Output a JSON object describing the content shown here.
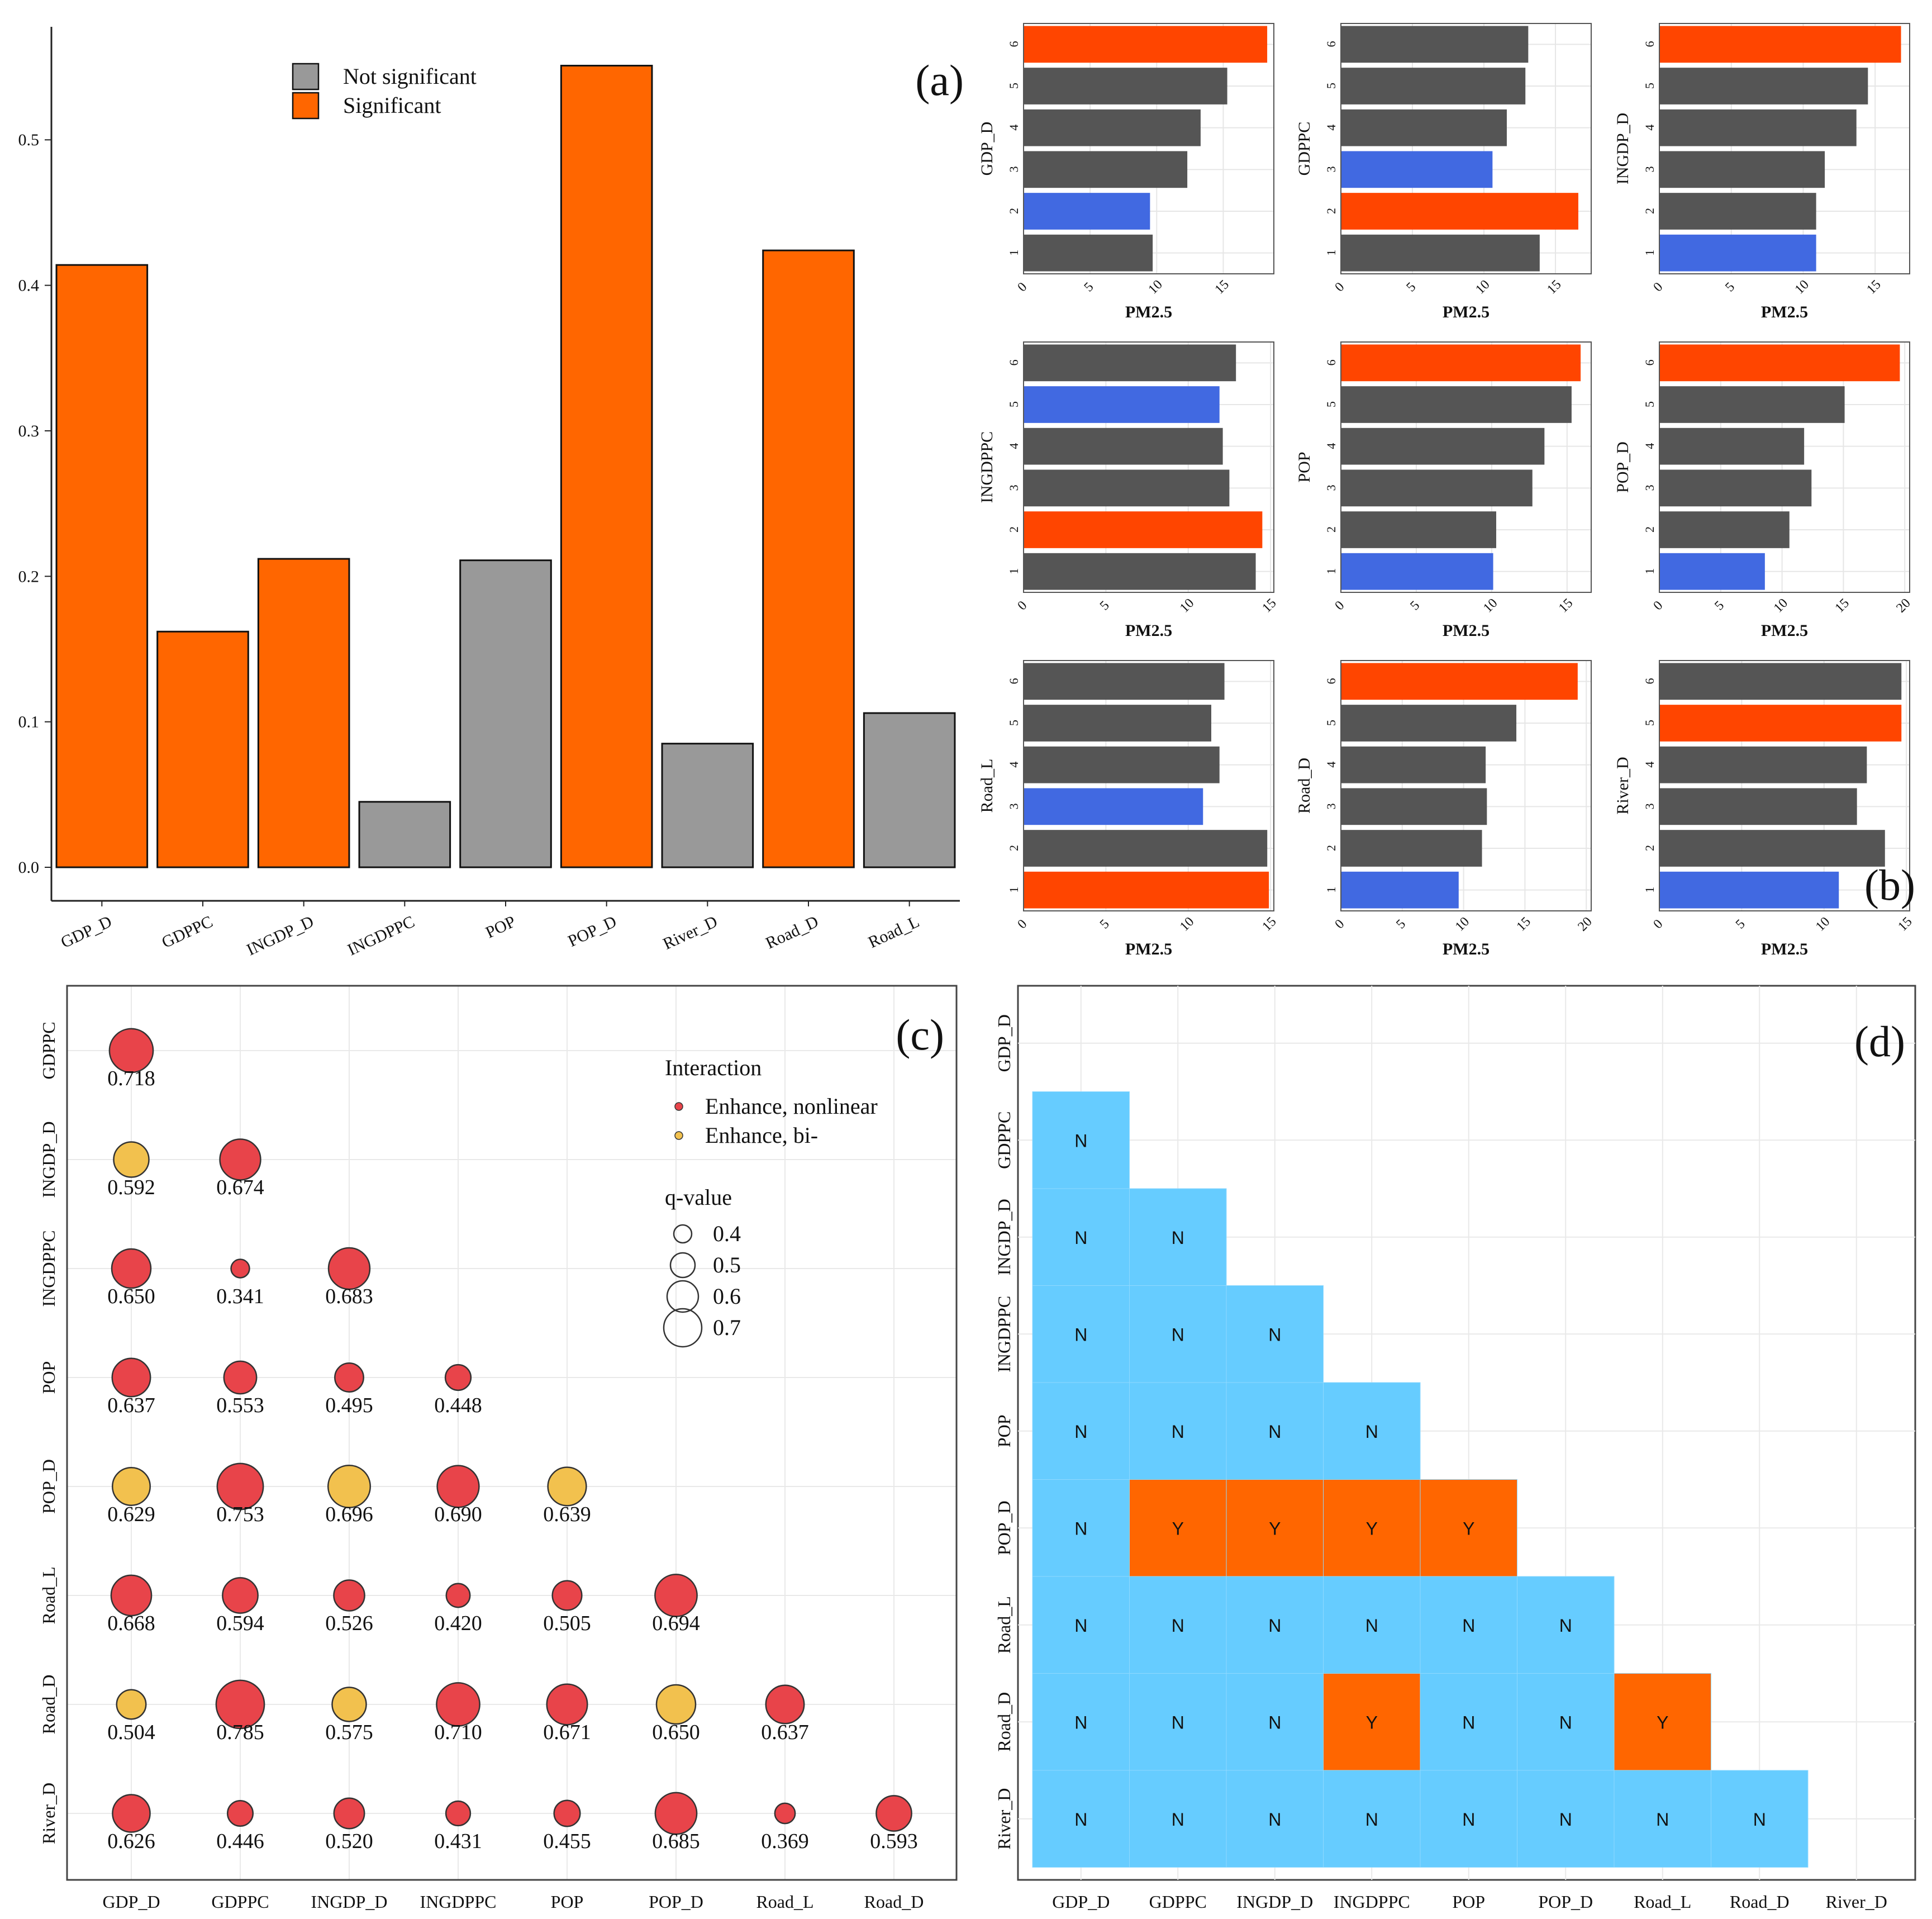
{
  "chart_data": [
    {
      "panel": "(a)",
      "type": "bar",
      "title": "",
      "xlabel": "",
      "ylabel": "",
      "categories": [
        "GDP_D",
        "GDPPC",
        "INGDP_D",
        "INGDPPC",
        "POP",
        "POP_D",
        "River_D",
        "Road_D",
        "Road_L"
      ],
      "values": [
        0.414,
        0.162,
        0.212,
        0.045,
        0.211,
        0.551,
        0.085,
        0.424,
        0.106
      ],
      "significance": [
        "Significant",
        "Significant",
        "Significant",
        "Not significant",
        "Not significant",
        "Significant",
        "Not significant",
        "Significant",
        "Not significant"
      ],
      "ylim": [
        0,
        0.57
      ],
      "yticks": [
        0.0,
        0.1,
        0.2,
        0.3,
        0.4,
        0.5
      ],
      "ytick_labels": [
        "0.0",
        "0.1",
        "0.2",
        "0.3",
        "0.4",
        "0.5"
      ],
      "legend": [
        {
          "label": "Not significant",
          "color": "#999999"
        },
        {
          "label": "Significant",
          "color": "#FF6600"
        }
      ],
      "legend_position": "top-center"
    },
    {
      "panel": "(b)",
      "type": "bar",
      "orientation": "horizontal",
      "xlabel": "PM2.5",
      "categories": [
        "1",
        "2",
        "3",
        "4",
        "5",
        "6"
      ],
      "colors": {
        "default": "#555555",
        "max": "#FF4500",
        "min": "#4169E1"
      },
      "subplots": [
        {
          "ylabel": "GDP_D",
          "values": [
            9.7,
            9.5,
            12.3,
            13.3,
            15.3,
            18.3
          ],
          "xlim": [
            0,
            18.8
          ],
          "xticks": [
            0,
            5,
            10,
            15
          ],
          "max_index": 5,
          "min_index": 1
        },
        {
          "ylabel": "GDPPC",
          "values": [
            13.9,
            16.6,
            10.6,
            11.6,
            12.9,
            13.1
          ],
          "xlim": [
            0,
            17.5
          ],
          "xticks": [
            0,
            5,
            10,
            15
          ],
          "max_index": 1,
          "min_index": 2
        },
        {
          "ylabel": "INGDP_D",
          "values": [
            10.9,
            10.9,
            11.5,
            13.7,
            14.5,
            16.8
          ],
          "xlim": [
            0,
            17.4
          ],
          "xticks": [
            0,
            5,
            10,
            15
          ],
          "max_index": 5,
          "min_index": 0
        },
        {
          "ylabel": "INGDPPC",
          "values": [
            14.1,
            14.5,
            12.5,
            12.1,
            11.9,
            12.9
          ],
          "xlim": [
            0,
            15.2
          ],
          "xticks": [
            0,
            5,
            10,
            15
          ],
          "max_index": 1,
          "min_index": 4
        },
        {
          "ylabel": "POP",
          "values": [
            10.1,
            10.3,
            12.7,
            13.5,
            15.3,
            15.9
          ],
          "xlim": [
            0,
            16.6
          ],
          "xticks": [
            0,
            5,
            10,
            15
          ],
          "max_index": 5,
          "min_index": 0
        },
        {
          "ylabel": "POP_D",
          "values": [
            8.6,
            10.6,
            12.4,
            11.8,
            15.1,
            19.6
          ],
          "xlim": [
            0,
            20.4
          ],
          "xticks": [
            0,
            5,
            10,
            15,
            20
          ],
          "max_index": 5,
          "min_index": 0
        },
        {
          "ylabel": "Road_L",
          "values": [
            14.9,
            14.8,
            10.9,
            11.9,
            11.4,
            12.2
          ],
          "xlim": [
            0,
            15.2
          ],
          "xticks": [
            0,
            5,
            10,
            15
          ],
          "max_index": 0,
          "min_index": 2
        },
        {
          "ylabel": "Road_D",
          "values": [
            9.6,
            11.5,
            11.9,
            11.8,
            14.3,
            19.3
          ],
          "xlim": [
            0,
            20.4
          ],
          "xticks": [
            0,
            5,
            10,
            15,
            20
          ],
          "max_index": 5,
          "min_index": 0
        },
        {
          "ylabel": "River_D",
          "values": [
            10.9,
            13.7,
            12.0,
            12.6,
            14.7,
            14.7
          ],
          "xlim": [
            0,
            15.2
          ],
          "xticks": [
            0,
            5,
            10,
            15
          ],
          "max_index": 4,
          "min_index": 0
        }
      ]
    },
    {
      "panel": "(c)",
      "type": "scatter",
      "x_categories": [
        "GDP_D",
        "GDPPC",
        "INGDP_D",
        "INGDPPC",
        "POP",
        "POP_D",
        "Road_L",
        "Road_D"
      ],
      "y_categories": [
        "GDPPC",
        "INGDP_D",
        "INGDPPC",
        "POP",
        "POP_D",
        "Road_L",
        "Road_D",
        "River_D"
      ],
      "legend_interaction_title": "Interaction",
      "interaction_types": [
        {
          "label": "Enhance, nonlinear",
          "color": "#E8444A"
        },
        {
          "label": "Enhance, bi-",
          "color": "#F2C14E"
        }
      ],
      "legend_size_title": "q-value",
      "size_levels": [
        0.4,
        0.5,
        0.6,
        0.7
      ],
      "size_labels": [
        "0.4",
        "0.5",
        "0.6",
        "0.7"
      ],
      "points": [
        {
          "row": "GDPPC",
          "col": "GDP_D",
          "value": 0.718,
          "label": "0.718",
          "type": "Enhance, nonlinear"
        },
        {
          "row": "INGDP_D",
          "col": "GDP_D",
          "value": 0.592,
          "label": "0.592",
          "type": "Enhance, bi-"
        },
        {
          "row": "INGDP_D",
          "col": "GDPPC",
          "value": 0.674,
          "label": "0.674",
          "type": "Enhance, nonlinear"
        },
        {
          "row": "INGDPPC",
          "col": "GDP_D",
          "value": 0.65,
          "label": "0.650",
          "type": "Enhance, nonlinear"
        },
        {
          "row": "INGDPPC",
          "col": "GDPPC",
          "value": 0.341,
          "label": "0.341",
          "type": "Enhance, nonlinear"
        },
        {
          "row": "INGDPPC",
          "col": "INGDP_D",
          "value": 0.683,
          "label": "0.683",
          "type": "Enhance, nonlinear"
        },
        {
          "row": "POP",
          "col": "GDP_D",
          "value": 0.637,
          "label": "0.637",
          "type": "Enhance, nonlinear"
        },
        {
          "row": "POP",
          "col": "GDPPC",
          "value": 0.553,
          "label": "0.553",
          "type": "Enhance, nonlinear"
        },
        {
          "row": "POP",
          "col": "INGDP_D",
          "value": 0.495,
          "label": "0.495",
          "type": "Enhance, nonlinear"
        },
        {
          "row": "POP",
          "col": "INGDPPC",
          "value": 0.448,
          "label": "0.448",
          "type": "Enhance, nonlinear"
        },
        {
          "row": "POP_D",
          "col": "GDP_D",
          "value": 0.629,
          "label": "0.629",
          "type": "Enhance, bi-"
        },
        {
          "row": "POP_D",
          "col": "GDPPC",
          "value": 0.753,
          "label": "0.753",
          "type": "Enhance, nonlinear"
        },
        {
          "row": "POP_D",
          "col": "INGDP_D",
          "value": 0.696,
          "label": "0.696",
          "type": "Enhance, bi-"
        },
        {
          "row": "POP_D",
          "col": "INGDPPC",
          "value": 0.69,
          "label": "0.690",
          "type": "Enhance, nonlinear"
        },
        {
          "row": "POP_D",
          "col": "POP",
          "value": 0.639,
          "label": "0.639",
          "type": "Enhance, bi-"
        },
        {
          "row": "Road_L",
          "col": "GDP_D",
          "value": 0.668,
          "label": "0.668",
          "type": "Enhance, nonlinear"
        },
        {
          "row": "Road_L",
          "col": "GDPPC",
          "value": 0.594,
          "label": "0.594",
          "type": "Enhance, nonlinear"
        },
        {
          "row": "Road_L",
          "col": "INGDP_D",
          "value": 0.526,
          "label": "0.526",
          "type": "Enhance, nonlinear"
        },
        {
          "row": "Road_L",
          "col": "INGDPPC",
          "value": 0.42,
          "label": "0.420",
          "type": "Enhance, nonlinear"
        },
        {
          "row": "Road_L",
          "col": "POP",
          "value": 0.505,
          "label": "0.505",
          "type": "Enhance, nonlinear"
        },
        {
          "row": "Road_L",
          "col": "POP_D",
          "value": 0.694,
          "label": "0.694",
          "type": "Enhance, nonlinear"
        },
        {
          "row": "Road_D",
          "col": "GDP_D",
          "value": 0.504,
          "label": "0.504",
          "type": "Enhance, bi-"
        },
        {
          "row": "Road_D",
          "col": "GDPPC",
          "value": 0.785,
          "label": "0.785",
          "type": "Enhance, nonlinear"
        },
        {
          "row": "Road_D",
          "col": "INGDP_D",
          "value": 0.575,
          "label": "0.575",
          "type": "Enhance, bi-"
        },
        {
          "row": "Road_D",
          "col": "INGDPPC",
          "value": 0.71,
          "label": "0.710",
          "type": "Enhance, nonlinear"
        },
        {
          "row": "Road_D",
          "col": "POP",
          "value": 0.671,
          "label": "0.671",
          "type": "Enhance, nonlinear"
        },
        {
          "row": "Road_D",
          "col": "POP_D",
          "value": 0.65,
          "label": "0.650",
          "type": "Enhance, bi-"
        },
        {
          "row": "Road_D",
          "col": "Road_L",
          "value": 0.637,
          "label": "0.637",
          "type": "Enhance, nonlinear"
        },
        {
          "row": "River_D",
          "col": "GDP_D",
          "value": 0.626,
          "label": "0.626",
          "type": "Enhance, nonlinear"
        },
        {
          "row": "River_D",
          "col": "GDPPC",
          "value": 0.446,
          "label": "0.446",
          "type": "Enhance, nonlinear"
        },
        {
          "row": "River_D",
          "col": "INGDP_D",
          "value": 0.52,
          "label": "0.520",
          "type": "Enhance, nonlinear"
        },
        {
          "row": "River_D",
          "col": "INGDPPC",
          "value": 0.431,
          "label": "0.431",
          "type": "Enhance, nonlinear"
        },
        {
          "row": "River_D",
          "col": "POP",
          "value": 0.455,
          "label": "0.455",
          "type": "Enhance, nonlinear"
        },
        {
          "row": "River_D",
          "col": "POP_D",
          "value": 0.685,
          "label": "0.685",
          "type": "Enhance, nonlinear"
        },
        {
          "row": "River_D",
          "col": "Road_L",
          "value": 0.369,
          "label": "0.369",
          "type": "Enhance, nonlinear"
        },
        {
          "row": "River_D",
          "col": "Road_D",
          "value": 0.593,
          "label": "0.593",
          "type": "Enhance, nonlinear"
        }
      ]
    },
    {
      "panel": "(d)",
      "type": "heatmap",
      "x_categories": [
        "GDP_D",
        "GDPPC",
        "INGDP_D",
        "INGDPPC",
        "POP",
        "POP_D",
        "Road_L",
        "Road_D",
        "River_D"
      ],
      "y_categories": [
        "GDP_D",
        "GDPPC",
        "INGDP_D",
        "INGDPPC",
        "POP",
        "POP_D",
        "Road_L",
        "Road_D",
        "River_D"
      ],
      "colors": {
        "N": "#66CCFF",
        "Y": "#FF6600"
      },
      "cells": [
        [
          "",
          "",
          "",
          "",
          "",
          "",
          "",
          "",
          ""
        ],
        [
          "N",
          "",
          "",
          "",
          "",
          "",
          "",
          "",
          ""
        ],
        [
          "N",
          "N",
          "",
          "",
          "",
          "",
          "",
          "",
          ""
        ],
        [
          "N",
          "N",
          "N",
          "",
          "",
          "",
          "",
          "",
          ""
        ],
        [
          "N",
          "N",
          "N",
          "N",
          "",
          "",
          "",
          "",
          ""
        ],
        [
          "N",
          "Y",
          "Y",
          "Y",
          "Y",
          "",
          "",
          "",
          ""
        ],
        [
          "N",
          "N",
          "N",
          "N",
          "N",
          "N",
          "",
          "",
          ""
        ],
        [
          "N",
          "N",
          "N",
          "Y",
          "N",
          "N",
          "Y",
          "",
          ""
        ],
        [
          "N",
          "N",
          "N",
          "N",
          "N",
          "N",
          "N",
          "N",
          ""
        ]
      ]
    }
  ]
}
